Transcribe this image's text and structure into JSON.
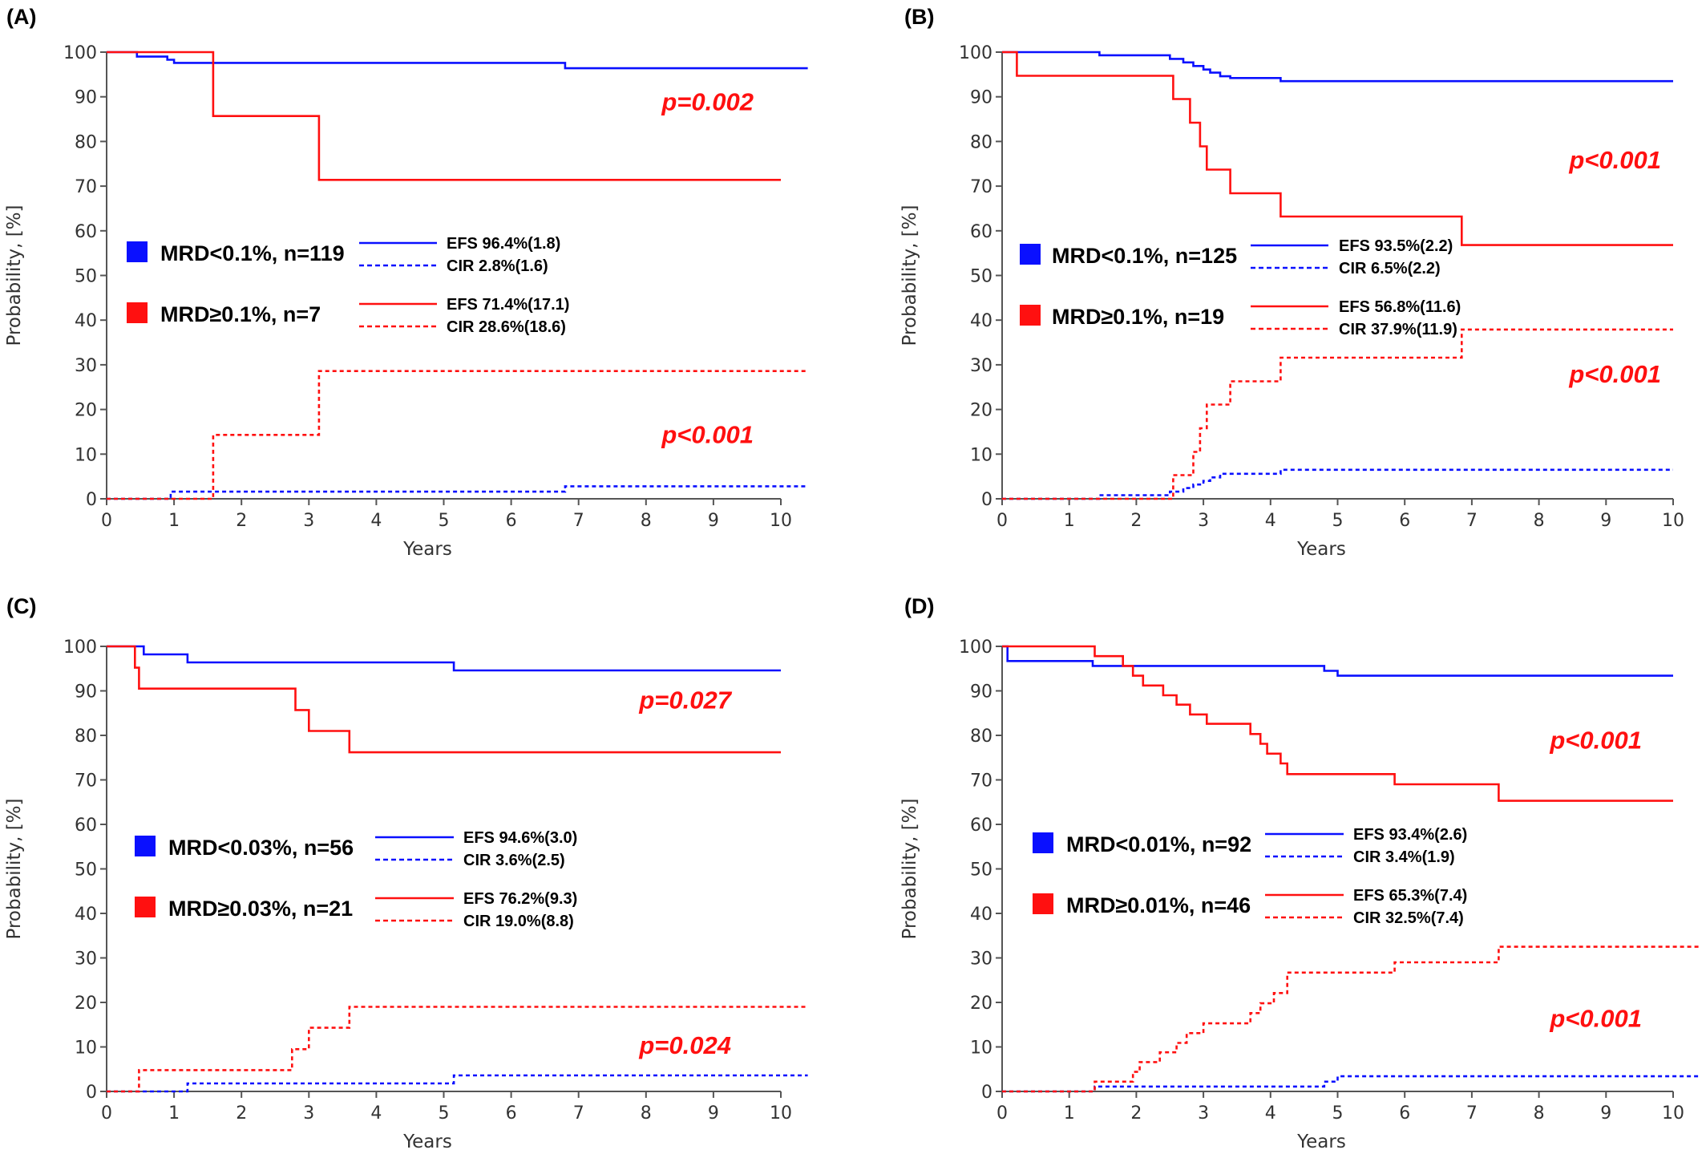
{
  "chart_data": [
    {
      "panel": "(A)",
      "type": "line",
      "step": true,
      "xlabel": "Years",
      "ylabel": "Probability, [%]",
      "xlim": [
        0,
        10
      ],
      "ylim": [
        0,
        100
      ],
      "xticks": [
        "0",
        "1",
        "2",
        "3",
        "4",
        "5",
        "6",
        "7",
        "8",
        "9",
        "10"
      ],
      "yticks": [
        "0",
        "10",
        "20",
        "30",
        "40",
        "50",
        "60",
        "70",
        "80",
        "90",
        "100"
      ],
      "groups": [
        {
          "label": "MRD<0.1%, n=119",
          "color": "#0a10ff",
          "efs_label": "EFS 96.4%(1.8)",
          "cir_label": "CIR 2.8%(1.6)"
        },
        {
          "label": "MRD≥0.1%, n=7",
          "color": "#ff1010",
          "efs_label": "EFS 71.4%(17.1)",
          "cir_label": "CIR 28.6%(18.6)"
        }
      ],
      "pvalues": [
        {
          "text": "p=0.002",
          "anchor_y": 87
        },
        {
          "text": "p<0.001",
          "anchor_y": 12.5
        }
      ],
      "series": [
        {
          "name": "EFS 96.4%(1.8)",
          "color": "#0a10ff",
          "style": "solid",
          "x": [
            0,
            0.45,
            0.9,
            1.0,
            6.8,
            10.4
          ],
          "y": [
            100,
            99,
            98.3,
            97.6,
            96.4,
            96.4
          ]
        },
        {
          "name": "EFS 71.4%(17.1)",
          "color": "#ff1010",
          "style": "solid",
          "x": [
            0,
            1.58,
            3.15,
            10.0
          ],
          "y": [
            100,
            85.7,
            71.4,
            71.4
          ]
        },
        {
          "name": "CIR 2.8%(1.6)",
          "color": "#0a10ff",
          "style": "dashed",
          "x": [
            0,
            0.95,
            6.8,
            10.4
          ],
          "y": [
            0,
            1.6,
            2.8,
            2.8
          ]
        },
        {
          "name": "CIR 28.6%(18.6)",
          "color": "#ff1010",
          "style": "dashed",
          "x": [
            0,
            1.58,
            3.15,
            10.4
          ],
          "y": [
            0,
            14.3,
            28.6,
            28.6
          ]
        }
      ]
    },
    {
      "panel": "(B)",
      "type": "line",
      "step": true,
      "xlabel": "Years",
      "ylabel": "Probability, [%]",
      "xlim": [
        0,
        10
      ],
      "ylim": [
        0,
        100
      ],
      "xticks": [
        "0",
        "1",
        "2",
        "3",
        "4",
        "5",
        "6",
        "7",
        "8",
        "9",
        "10"
      ],
      "yticks": [
        "0",
        "10",
        "20",
        "30",
        "40",
        "50",
        "60",
        "70",
        "80",
        "90",
        "100"
      ],
      "groups": [
        {
          "label": "MRD<0.1%, n=125",
          "color": "#0a10ff",
          "efs_label": "EFS 93.5%(2.2)",
          "cir_label": "CIR 6.5%(2.2)"
        },
        {
          "label": "MRD≥0.1%, n=19",
          "color": "#ff1010",
          "efs_label": "EFS 56.8%(11.6)",
          "cir_label": "CIR 37.9%(11.9)"
        }
      ],
      "pvalues": [
        {
          "text": "p<0.001",
          "anchor_y": 74
        },
        {
          "text": "p<0.001",
          "anchor_y": 26
        }
      ],
      "series": [
        {
          "name": "EFS 93.5%(2.2)",
          "color": "#0a10ff",
          "style": "solid",
          "x": [
            0,
            1.45,
            2.5,
            2.7,
            2.85,
            3.0,
            3.1,
            3.25,
            3.4,
            4.15,
            10.0
          ],
          "y": [
            100,
            99.3,
            98.5,
            97.7,
            96.9,
            96.1,
            95.4,
            94.6,
            94.2,
            93.5,
            93.5
          ]
        },
        {
          "name": "EFS 56.8%(11.6)",
          "color": "#ff1010",
          "style": "solid",
          "x": [
            0,
            0.22,
            2.55,
            2.8,
            2.95,
            3.05,
            3.15,
            3.4,
            4.15,
            6.85,
            10.0
          ],
          "y": [
            100,
            94.7,
            89.5,
            84.2,
            78.9,
            73.7,
            73.7,
            68.4,
            63.2,
            56.8,
            56.8
          ]
        },
        {
          "name": "CIR 6.5%(2.2)",
          "color": "#0a10ff",
          "style": "dashed",
          "x": [
            0,
            1.45,
            2.5,
            2.7,
            2.85,
            3.0,
            3.1,
            3.25,
            3.4,
            4.15,
            10.0
          ],
          "y": [
            0,
            0.8,
            1.6,
            2.4,
            3.2,
            4.0,
            4.8,
            5.6,
            5.6,
            6.5,
            6.5
          ]
        },
        {
          "name": "CIR 37.9%(11.9)",
          "color": "#ff1010",
          "style": "dashed",
          "x": [
            0,
            2.55,
            2.7,
            2.85,
            2.95,
            3.05,
            3.1,
            3.2,
            3.4,
            4.15,
            6.85,
            10.0
          ],
          "y": [
            0,
            5.3,
            5.3,
            10.5,
            15.8,
            21.1,
            21.1,
            21.1,
            26.3,
            31.6,
            37.9,
            37.9
          ]
        }
      ]
    },
    {
      "panel": "(C)",
      "type": "line",
      "step": true,
      "xlabel": "Years",
      "ylabel": "Probability, [%]",
      "xlim": [
        0,
        10
      ],
      "ylim": [
        0,
        100
      ],
      "xticks": [
        "0",
        "1",
        "2",
        "3",
        "4",
        "5",
        "6",
        "7",
        "8",
        "9",
        "10"
      ],
      "yticks": [
        "0",
        "10",
        "20",
        "30",
        "40",
        "50",
        "60",
        "70",
        "80",
        "90",
        "100"
      ],
      "groups": [
        {
          "label": "MRD<0.03%, n=56",
          "color": "#0a10ff",
          "efs_label": "EFS 94.6%(3.0)",
          "cir_label": "CIR 3.6%(2.5)"
        },
        {
          "label": "MRD≥0.03%, n=21",
          "color": "#ff1010",
          "efs_label": "EFS 76.2%(9.3)",
          "cir_label": "CIR 19.0%(8.8)"
        }
      ],
      "pvalues": [
        {
          "text": "p=0.027",
          "anchor_y": 86
        },
        {
          "text": "p=0.024",
          "anchor_y": 8.5
        }
      ],
      "series": [
        {
          "name": "EFS 94.6%(3.0)",
          "color": "#0a10ff",
          "style": "solid",
          "x": [
            0,
            0.55,
            1.2,
            5.15,
            10.0
          ],
          "y": [
            100,
            98.2,
            96.4,
            94.6,
            94.6
          ]
        },
        {
          "name": "EFS 76.2%(9.3)",
          "color": "#ff1010",
          "style": "solid",
          "x": [
            0,
            0.42,
            0.48,
            2.8,
            3.0,
            3.6,
            10.0
          ],
          "y": [
            100,
            95.2,
            90.5,
            85.7,
            81.0,
            76.2,
            76.2
          ]
        },
        {
          "name": "CIR 3.6%(2.5)",
          "color": "#0a10ff",
          "style": "dashed",
          "x": [
            0,
            1.2,
            5.15,
            10.4
          ],
          "y": [
            0,
            1.8,
            3.6,
            3.6
          ]
        },
        {
          "name": "CIR 19.0%(8.8)",
          "color": "#ff1010",
          "style": "dashed",
          "x": [
            0,
            0.48,
            2.75,
            2.9,
            3.0,
            3.6,
            10.4
          ],
          "y": [
            0,
            4.8,
            9.5,
            9.5,
            14.3,
            19.0,
            19.0
          ]
        }
      ]
    },
    {
      "panel": "(D)",
      "type": "line",
      "step": true,
      "xlabel": "Years",
      "ylabel": "Probability, [%]",
      "xlim": [
        0,
        10
      ],
      "ylim": [
        0,
        100
      ],
      "xticks": [
        "0",
        "1",
        "2",
        "3",
        "4",
        "5",
        "6",
        "7",
        "8",
        "9",
        "10"
      ],
      "yticks": [
        "0",
        "10",
        "20",
        "30",
        "40",
        "50",
        "60",
        "70",
        "80",
        "90",
        "100"
      ],
      "groups": [
        {
          "label": "MRD<0.01%, n=92",
          "color": "#0a10ff",
          "efs_label": "EFS 93.4%(2.6)",
          "cir_label": "CIR 3.4%(1.9)"
        },
        {
          "label": "MRD≥0.01%, n=46",
          "color": "#ff1010",
          "efs_label": "EFS 65.3%(7.4)",
          "cir_label": "CIR 32.5%(7.4)"
        }
      ],
      "pvalues": [
        {
          "text": "p<0.001",
          "anchor_y": 77
        },
        {
          "text": "p<0.001",
          "anchor_y": 14.5
        }
      ],
      "series": [
        {
          "name": "EFS 93.4%(2.6)",
          "color": "#0a10ff",
          "style": "solid",
          "x": [
            0,
            0.08,
            1.35,
            1.9,
            4.8,
            5.0,
            10.0
          ],
          "y": [
            100,
            96.7,
            95.6,
            95.6,
            94.5,
            93.4,
            93.4
          ]
        },
        {
          "name": "EFS 65.3%(7.4)",
          "color": "#ff1010",
          "style": "solid",
          "x": [
            0,
            1.38,
            1.8,
            1.95,
            2.1,
            2.4,
            2.6,
            2.8,
            2.9,
            3.05,
            3.7,
            3.85,
            3.95,
            4.05,
            4.15,
            4.25,
            5.85,
            7.4,
            10.0
          ],
          "y": [
            100,
            97.8,
            95.6,
            93.4,
            91.2,
            89.0,
            86.9,
            84.7,
            84.7,
            82.6,
            80.3,
            78.1,
            75.9,
            75.9,
            73.7,
            71.3,
            69.0,
            65.3,
            65.3
          ]
        },
        {
          "name": "CIR 3.4%(1.9)",
          "color": "#0a10ff",
          "style": "dashed",
          "x": [
            0,
            1.38,
            4.8,
            5.0,
            10.4
          ],
          "y": [
            0,
            1.1,
            2.2,
            3.4,
            3.4
          ]
        },
        {
          "name": "CIR 32.5%(7.4)",
          "color": "#ff1010",
          "style": "dashed",
          "x": [
            0,
            1.38,
            1.95,
            2.05,
            2.35,
            2.6,
            2.75,
            2.9,
            3.0,
            3.7,
            3.85,
            3.95,
            4.05,
            4.25,
            5.85,
            7.4,
            10.4
          ],
          "y": [
            0,
            2.2,
            4.4,
            6.6,
            8.8,
            10.9,
            13.1,
            13.1,
            15.3,
            17.6,
            19.8,
            19.8,
            22.1,
            26.7,
            29.0,
            32.5,
            32.5
          ]
        }
      ]
    }
  ]
}
